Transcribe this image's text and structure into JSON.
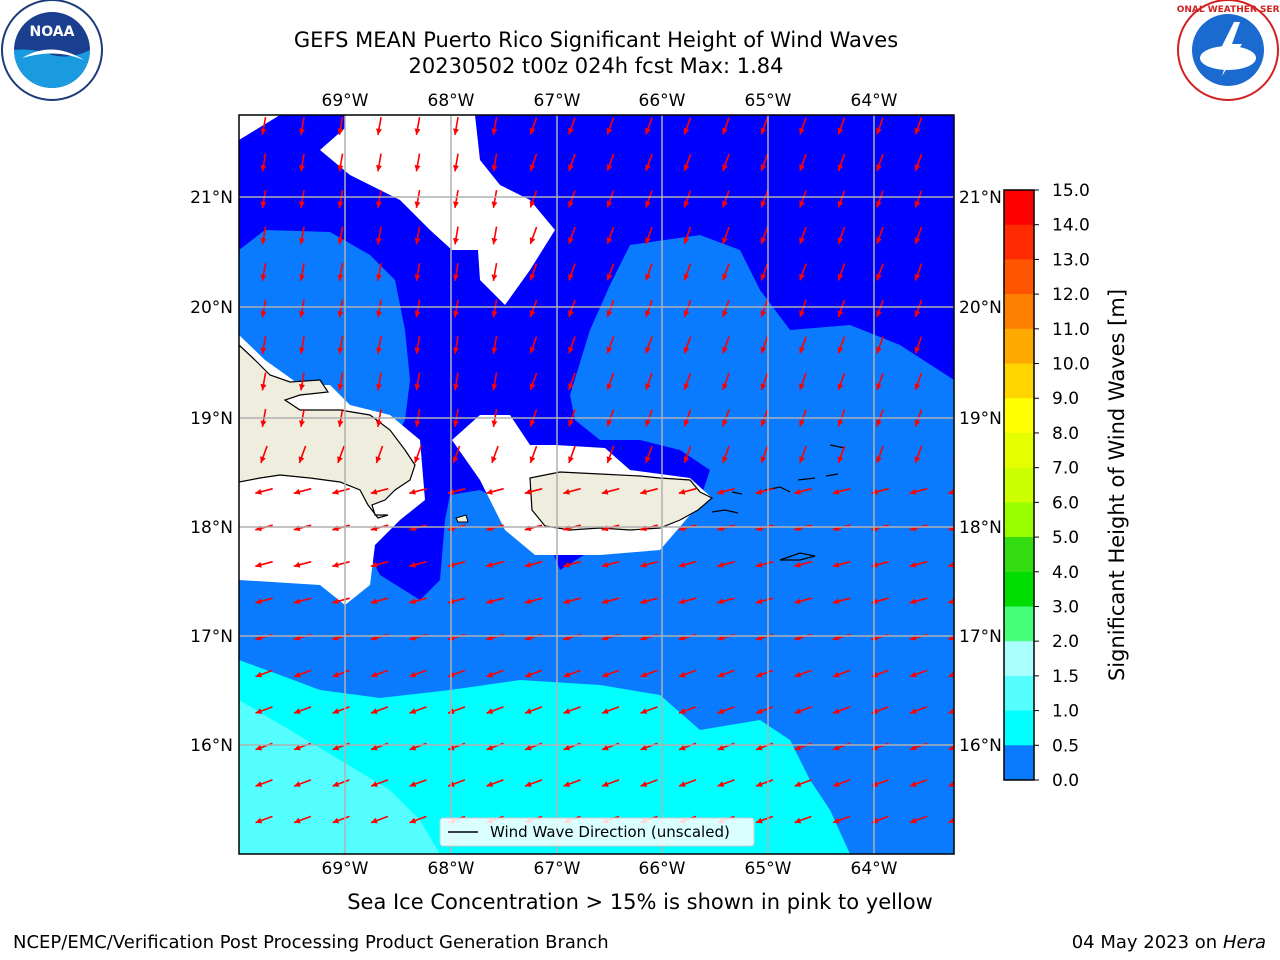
{
  "header": {
    "title_line1": "GEFS MEAN Puerto Rico Significant Height of Wind Waves",
    "title_line2": "20230502 t00z 024h fcst   Max: 1.84"
  },
  "map": {
    "lon_labels": [
      "69°W",
      "68°W",
      "67°W",
      "66°W",
      "65°W",
      "64°W"
    ],
    "lat_labels": [
      "21°N",
      "20°N",
      "19°N",
      "18°N",
      "17°N",
      "16°N"
    ],
    "legend_label": "Wind Wave Direction (unscaled)",
    "colors": {
      "level_0_05": "#0000ff",
      "level_05_10": "#0a7bff",
      "level_10_15": "#00ffff",
      "level_15_20": "#55ffff",
      "land": "#efedde",
      "arrow": "#ff0000",
      "grid": "#b0b0b0"
    }
  },
  "colorbar": {
    "label": "Significant Height of Wind Waves [m]",
    "ticks": [
      "15.0",
      "14.0",
      "13.0",
      "12.0",
      "11.0",
      "10.0",
      "9.0",
      "8.0",
      "7.0",
      "6.0",
      "5.0",
      "4.0",
      "3.0",
      "2.0",
      "1.5",
      "1.0",
      "0.5",
      "0.0"
    ],
    "colors": [
      "#ff0000",
      "#ff2a00",
      "#ff5500",
      "#ff8000",
      "#ffaa00",
      "#ffd500",
      "#ffff00",
      "#e6ff00",
      "#ccff00",
      "#99ff00",
      "#33dd11",
      "#00dd00",
      "#44ff77",
      "#aaffff",
      "#55ffff",
      "#00ffff",
      "#0a7bff",
      "#0000ff"
    ]
  },
  "logos": {
    "left_text": "NOAA",
    "right_text": "NATIONAL WEATHER SERVICE"
  },
  "subtitle": "Sea Ice Concentration > 15% is shown in pink to yellow",
  "footer": {
    "left": "NCEP/EMC/Verification Post Processing Product Generation Branch",
    "right_date": "04 May 2023 on",
    "right_host": "Hera"
  }
}
